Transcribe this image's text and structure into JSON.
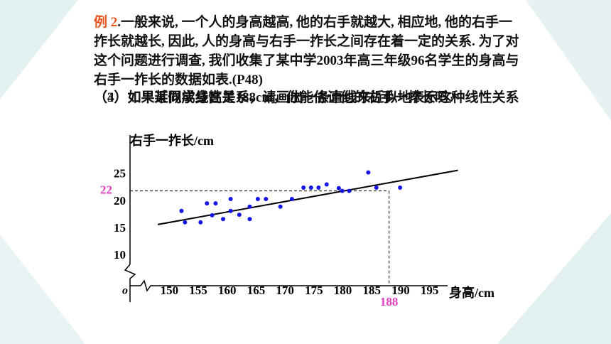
{
  "slide": {
    "example": "例 2",
    "text": ".一般来说, 一个人的身高越高, 他的右手就越大, 相应地, 他的右手一拃长就越长, 因此, 人的身高与右手一拃长之间存在着一定的关系. 为了对这个问题进行调查, 我们收集了某中学2003年高三年级96名学生的身高与右手一拃长的数据如表.(P48)",
    "question3": "（3）如果近似成线性关系，请画出一条直线来近似地表示这种线性关系",
    "question4": "（4）如果某同学身高是188cm，你能估计他的右手一拃长吗?"
  },
  "chart_data": {
    "type": "scatter",
    "x_label": "身高/cm",
    "y_label": "右手一拃长/cm",
    "origin_label": "o",
    "x": [
      152.1,
      152.7,
      155.4,
      156.5,
      158.0,
      157.4,
      159.3,
      160.6,
      160.6,
      162.1,
      163.9,
      163.9,
      165.3,
      166.7,
      169.2,
      171.2,
      173.2,
      174.5,
      175.8,
      177.2,
      179.3,
      179.9,
      181.1,
      184.4,
      185.8,
      189.9
    ],
    "values": [
      18.3,
      16.2,
      16.2,
      19.7,
      19.7,
      17.5,
      16.8,
      20.5,
      18.3,
      17.6,
      19.1,
      16.8,
      20.5,
      20.5,
      19.1,
      20.5,
      22.6,
      22.6,
      22.6,
      23.2,
      22.5,
      22.0,
      22.0,
      25.4,
      22.6,
      22.6
    ],
    "color": "#1414e6",
    "fit_line": {
      "x": [
        148.0,
        199.9
      ],
      "y": [
        15.8,
        25.8
      ]
    },
    "guide": {
      "x": 188,
      "y": 22,
      "color": "#e040c0"
    },
    "xlim": [
      143.2,
      197.5
    ],
    "ylim": [
      4.5,
      31
    ],
    "xticks": [
      150,
      155,
      160,
      165,
      170,
      175,
      180,
      185,
      190,
      195
    ],
    "yticks": [
      10,
      15,
      20,
      25
    ]
  }
}
